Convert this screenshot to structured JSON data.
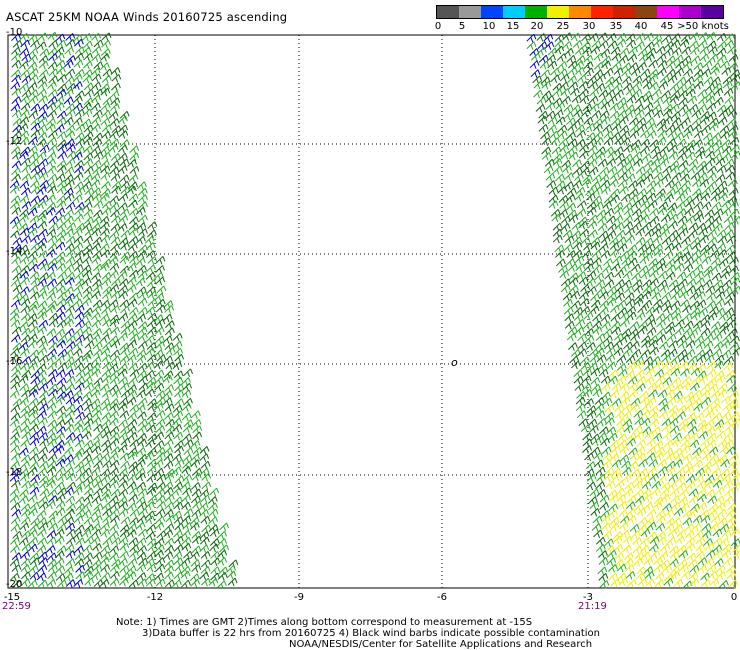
{
  "title": "ASCAT 25KM NOAA Winds 20160725 ascending",
  "legend": {
    "labels": [
      "0",
      "5",
      "10",
      "15",
      "20",
      "25",
      "30",
      "35",
      "40",
      "45",
      ">50 knots"
    ],
    "colors": [
      "#555555",
      "#999999",
      "#0044ff",
      "#00ccff",
      "#00b000",
      "#f0f000",
      "#ff8800",
      "#ff2200",
      "#cc2200",
      "#8b4513",
      "#ff00ff",
      "#aa00cc",
      "#5a00a0"
    ]
  },
  "axes": {
    "x_ticks": [
      "-15",
      "-12",
      "-9",
      "-6",
      "-3",
      "0"
    ],
    "y_ticks": [
      "-10",
      "-12",
      "-14",
      "-16",
      "-18",
      "-20"
    ]
  },
  "times": {
    "left": "22:59",
    "right": "21:19"
  },
  "center_marker": "o",
  "notes": {
    "line1": "Note: 1) Times are GMT 2)Times along bottom correspond to measurement at -15S",
    "line2": "3)Data buffer is 22 hrs from 20160725 4) Black wind barbs indicate possible contamination",
    "line3": "NOAA/NESDIS/Center for Satellite Applications and Research"
  },
  "barb_colors": {
    "green": "#22b022",
    "dark_green": "#0a6a0a",
    "blue": "#0000cc",
    "yellow": "#f0f000"
  }
}
